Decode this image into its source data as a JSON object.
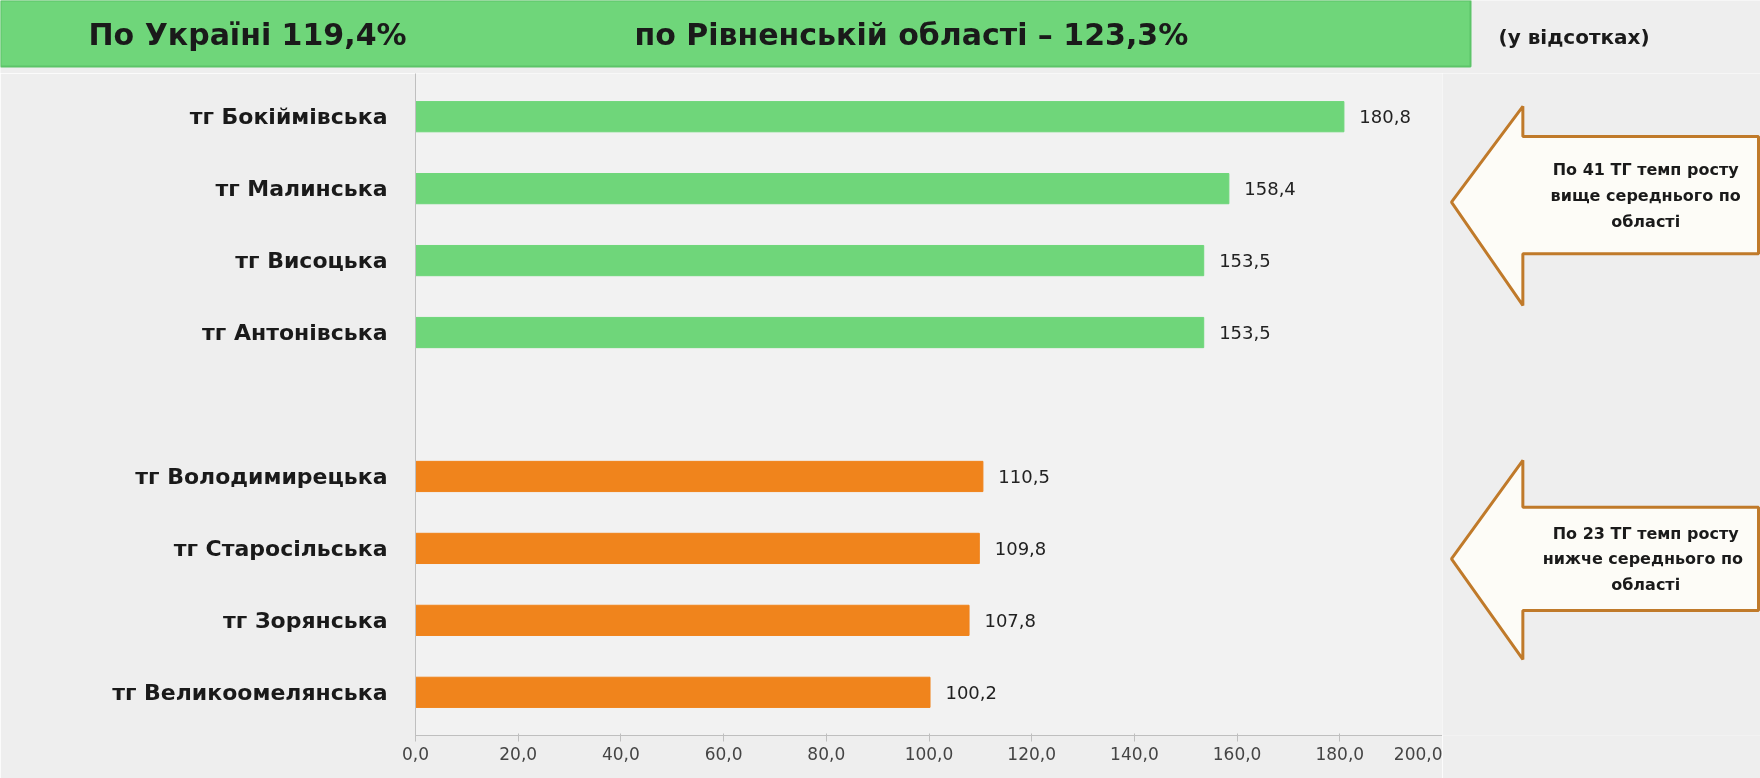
{
  "chart_data": {
    "type": "bar",
    "orientation": "horizontal",
    "title": "По Україні 119,4%",
    "subtitle": "по Рівненській області – 123,3%",
    "annotations": [
      "(у відсотках)",
      "По 41 ТГ темп росту вище середнього по області",
      "По 23 ТГ темп росту нижче  середнього по області"
    ],
    "categories": [
      "тг Бокіймівська",
      "тг Малинська",
      "тг Висоцька",
      "тг Антонівська",
      null,
      "тг Володимирецька",
      "тг Старосільська",
      "тг Зорянська",
      "тг Великоомелянська"
    ],
    "values": [
      180.8,
      158.4,
      153.5,
      153.5,
      null,
      110.5,
      109.8,
      107.8,
      100.2
    ],
    "value_labels": [
      "180,8",
      "158,4",
      "153,5",
      "153,5",
      null,
      "110,5",
      "109,8",
      "107,8",
      "100,2"
    ],
    "colors": [
      "#6fd67a",
      "#6fd67a",
      "#6fd67a",
      "#6fd67a",
      "#6fd67a",
      "#f0841c",
      "#f0841c",
      "#f0841c",
      "#f0841c"
    ],
    "xlim": [
      0,
      200
    ],
    "xticks": [
      {
        "value": 0,
        "label": "0,0"
      },
      {
        "value": 20,
        "label": "20,0"
      },
      {
        "value": 40,
        "label": "40,0"
      },
      {
        "value": 60,
        "label": "60,0"
      },
      {
        "value": 80,
        "label": "80,0"
      },
      {
        "value": 100,
        "label": "100,0"
      },
      {
        "value": 120,
        "label": "120,0"
      },
      {
        "value": 140,
        "label": "140,0"
      },
      {
        "value": 160,
        "label": "160,0"
      },
      {
        "value": 180,
        "label": "180,0"
      },
      {
        "value": 200,
        "label": "200,0"
      }
    ],
    "grid": false
  }
}
